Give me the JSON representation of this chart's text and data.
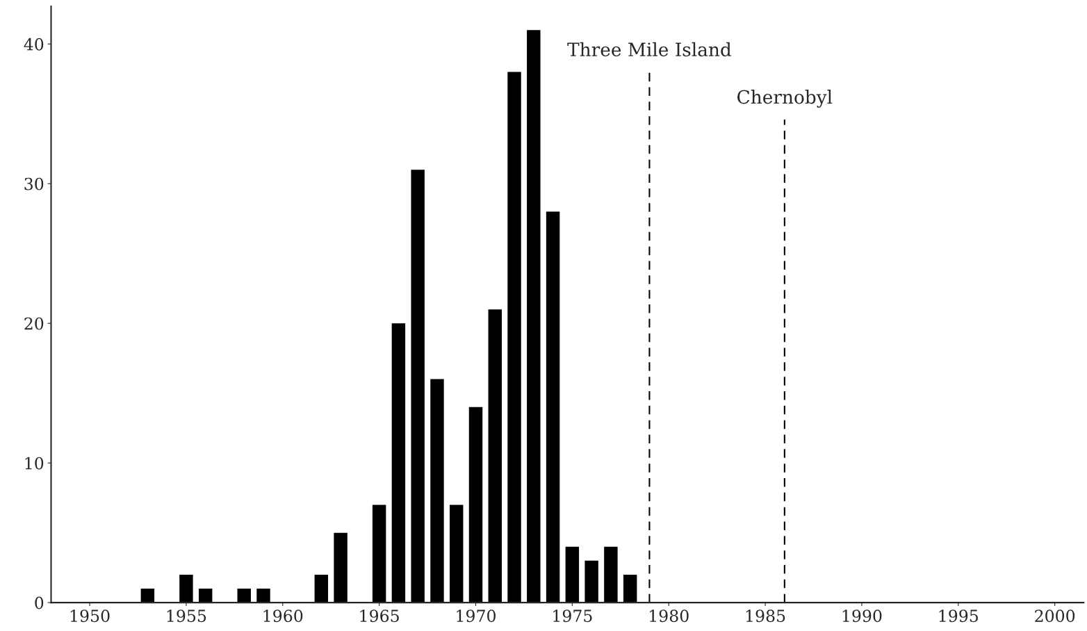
{
  "chart_data": {
    "type": "bar",
    "x": [
      1953,
      1955,
      1956,
      1958,
      1959,
      1962,
      1963,
      1965,
      1966,
      1967,
      1968,
      1969,
      1970,
      1971,
      1972,
      1973,
      1974,
      1975,
      1976,
      1977,
      1978
    ],
    "values": [
      1,
      2,
      1,
      1,
      1,
      2,
      5,
      7,
      20,
      31,
      16,
      7,
      14,
      21,
      38,
      41,
      28,
      4,
      3,
      4,
      2
    ],
    "color": "#000000",
    "xlim": [
      1948,
      2001.5
    ],
    "xticks": [
      1950,
      1955,
      1960,
      1965,
      1970,
      1975,
      1980,
      1985,
      1990,
      1995,
      2000
    ],
    "ylim": [
      0,
      42.7
    ],
    "yticks": [
      0,
      10,
      20,
      30,
      40
    ],
    "grid": false,
    "ref_lines": [
      {
        "axis": "x",
        "value": 1979,
        "label": "Three Mile Island",
        "color": "#000000",
        "line_style": "dashed"
      },
      {
        "axis": "x",
        "value": 1986,
        "label": "Chernobyl",
        "color": "#000000",
        "line_style": "dashed"
      }
    ]
  }
}
